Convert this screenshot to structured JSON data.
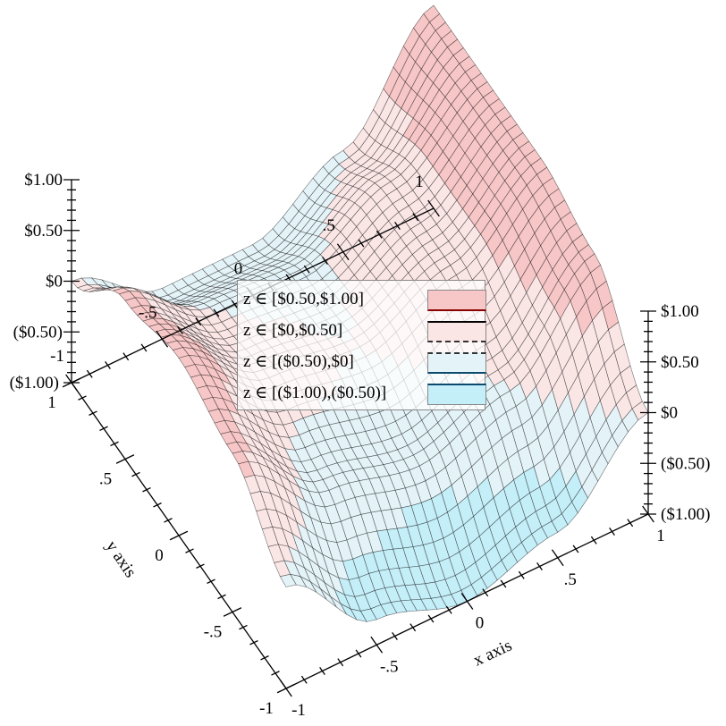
{
  "chart_data": {
    "type": "surface3d-contour-intervals",
    "x_axis": {
      "label": "x axis",
      "range": [
        -1,
        1
      ],
      "ticks": [
        "-1",
        "-.5",
        "0",
        ".5",
        "1"
      ],
      "tick_values": [
        -1,
        -0.5,
        0,
        0.5,
        1
      ]
    },
    "y_axis": {
      "label": "y axis",
      "range": [
        -1,
        1
      ],
      "ticks": [
        "-1",
        "-.5",
        "0",
        ".5",
        "1"
      ],
      "tick_values": [
        -1,
        -0.5,
        0,
        0.5,
        1
      ]
    },
    "z_axis": {
      "label": "",
      "range": [
        -1,
        1
      ],
      "ticks": [
        "($1.00)",
        "($0.50)",
        "$0",
        "$0.50",
        "$1.00"
      ],
      "tick_values": [
        -1,
        -0.5,
        0,
        0.5,
        1
      ]
    },
    "grid_x": [
      -1,
      -0.5,
      0,
      0.5,
      1
    ],
    "grid_y": [
      -1,
      -0.5,
      0,
      0.5,
      1
    ],
    "z_grid": [
      [
        0,
        -0.75,
        -1,
        -0.75,
        0
      ],
      [
        0.5625,
        -0.125,
        -0.3125,
        0,
        0.8125
      ],
      [
        0.75,
        0.125,
        0,
        0.375,
        1
      ],
      [
        0.5625,
        0,
        -0.0625,
        0.375,
        1
      ],
      [
        0,
        -0.5,
        -0.5,
        0,
        1
      ]
    ],
    "legend_placement": "center",
    "intervals": [
      {
        "label": "z ∈ [$0.50,$1.00]",
        "min": 0.5,
        "max": 1,
        "color": "#f7c6c6",
        "line_top": "none",
        "line_bottom": "#8b0000"
      },
      {
        "label": "z ∈ [$0,$0.50]",
        "min": 0,
        "max": 0.5,
        "color": "#fbe6e6",
        "line_top": "#000000",
        "line_bottom": "dashed"
      },
      {
        "label": "z ∈ [($0.50),$0]",
        "min": -0.5,
        "max": 0,
        "color": "#e4f3f8",
        "line_top": "dashed",
        "line_bottom": "#0b4a6e"
      },
      {
        "label": "z ∈ [($1.00),($0.50)]",
        "min": -1,
        "max": -0.5,
        "color": "#c4eef8",
        "line_top": "#0b4a6e",
        "line_bottom": "none"
      }
    ]
  }
}
